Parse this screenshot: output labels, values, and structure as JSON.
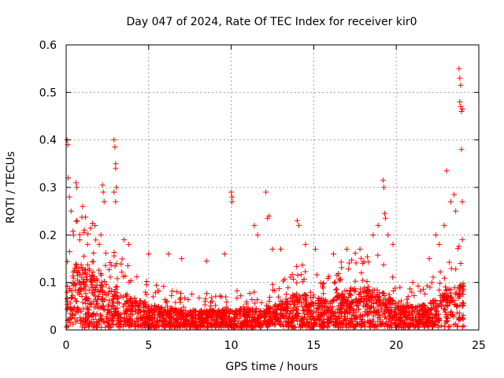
{
  "chart_data": {
    "type": "scatter",
    "title": "Day 047 of 2024, Rate Of TEC Index for receiver kir0",
    "xlabel": "GPS time / hours",
    "ylabel": "ROTI / TECUs",
    "xlim": [
      0,
      25
    ],
    "ylim": [
      0,
      0.6
    ],
    "x_ticks": [
      "0",
      "5",
      "10",
      "15",
      "20",
      "25"
    ],
    "y_ticks": [
      "0",
      "0.1",
      "0.2",
      "0.3",
      "0.4",
      "0.5",
      "0.6"
    ],
    "grid": true,
    "marker": "+",
    "color": "#ff0000",
    "series": [
      {
        "name": "ROTI",
        "points": [
          [
            0.05,
            0.4
          ],
          [
            0.1,
            0.39
          ],
          [
            0.12,
            0.32
          ],
          [
            0.2,
            0.28
          ],
          [
            0.3,
            0.25
          ],
          [
            0.6,
            0.31
          ],
          [
            0.65,
            0.3
          ],
          [
            1.0,
            0.26
          ],
          [
            1.1,
            0.21
          ],
          [
            1.3,
            0.18
          ],
          [
            2.2,
            0.305
          ],
          [
            2.25,
            0.29
          ],
          [
            2.3,
            0.27
          ],
          [
            2.9,
            0.4
          ],
          [
            2.95,
            0.385
          ],
          [
            3.0,
            0.35
          ],
          [
            3.0,
            0.34
          ],
          [
            3.05,
            0.3
          ],
          [
            2.9,
            0.29
          ],
          [
            3.0,
            0.27
          ],
          [
            3.5,
            0.19
          ],
          [
            3.8,
            0.18
          ],
          [
            5.0,
            0.16
          ],
          [
            6.2,
            0.16
          ],
          [
            7.0,
            0.15
          ],
          [
            8.5,
            0.145
          ],
          [
            9.6,
            0.16
          ],
          [
            10.0,
            0.29
          ],
          [
            10.05,
            0.28
          ],
          [
            10.05,
            0.27
          ],
          [
            11.4,
            0.22
          ],
          [
            11.6,
            0.2
          ],
          [
            12.1,
            0.29
          ],
          [
            12.3,
            0.24
          ],
          [
            12.2,
            0.235
          ],
          [
            12.5,
            0.17
          ],
          [
            13.0,
            0.17
          ],
          [
            14.0,
            0.23
          ],
          [
            14.1,
            0.22
          ],
          [
            14.5,
            0.18
          ],
          [
            15.1,
            0.17
          ],
          [
            16.2,
            0.16
          ],
          [
            17.0,
            0.17
          ],
          [
            17.8,
            0.17
          ],
          [
            18.6,
            0.2
          ],
          [
            18.9,
            0.22
          ],
          [
            19.2,
            0.315
          ],
          [
            19.25,
            0.3
          ],
          [
            19.3,
            0.245
          ],
          [
            19.35,
            0.235
          ],
          [
            19.5,
            0.2
          ],
          [
            19.8,
            0.18
          ],
          [
            21.0,
            0.1
          ],
          [
            22.0,
            0.15
          ],
          [
            22.4,
            0.2
          ],
          [
            22.6,
            0.18
          ],
          [
            22.9,
            0.22
          ],
          [
            23.05,
            0.335
          ],
          [
            23.3,
            0.27
          ],
          [
            23.5,
            0.285
          ],
          [
            23.6,
            0.25
          ],
          [
            23.8,
            0.55
          ],
          [
            23.85,
            0.53
          ],
          [
            23.9,
            0.515
          ],
          [
            23.85,
            0.48
          ],
          [
            23.9,
            0.47
          ],
          [
            23.95,
            0.46
          ],
          [
            24.0,
            0.465
          ],
          [
            23.95,
            0.38
          ],
          [
            24.0,
            0.27
          ],
          [
            24.0,
            0.19
          ],
          [
            23.9,
            0.14
          ]
        ],
        "baseline_profile": [
          [
            0,
            0.06
          ],
          [
            0.5,
            0.1
          ],
          [
            1,
            0.1
          ],
          [
            1.5,
            0.09
          ],
          [
            2,
            0.08
          ],
          [
            2.5,
            0.07
          ],
          [
            3,
            0.065
          ],
          [
            4,
            0.05
          ],
          [
            5,
            0.04
          ],
          [
            6,
            0.035
          ],
          [
            7,
            0.03
          ],
          [
            8,
            0.03
          ],
          [
            9,
            0.03
          ],
          [
            10,
            0.032
          ],
          [
            11,
            0.032
          ],
          [
            12,
            0.035
          ],
          [
            13,
            0.04
          ],
          [
            14,
            0.055
          ],
          [
            15,
            0.05
          ],
          [
            16,
            0.045
          ],
          [
            17,
            0.06
          ],
          [
            18,
            0.065
          ],
          [
            19,
            0.06
          ],
          [
            20,
            0.04
          ],
          [
            21,
            0.035
          ],
          [
            22,
            0.04
          ],
          [
            23,
            0.06
          ],
          [
            24,
            0.07
          ]
        ]
      }
    ]
  }
}
